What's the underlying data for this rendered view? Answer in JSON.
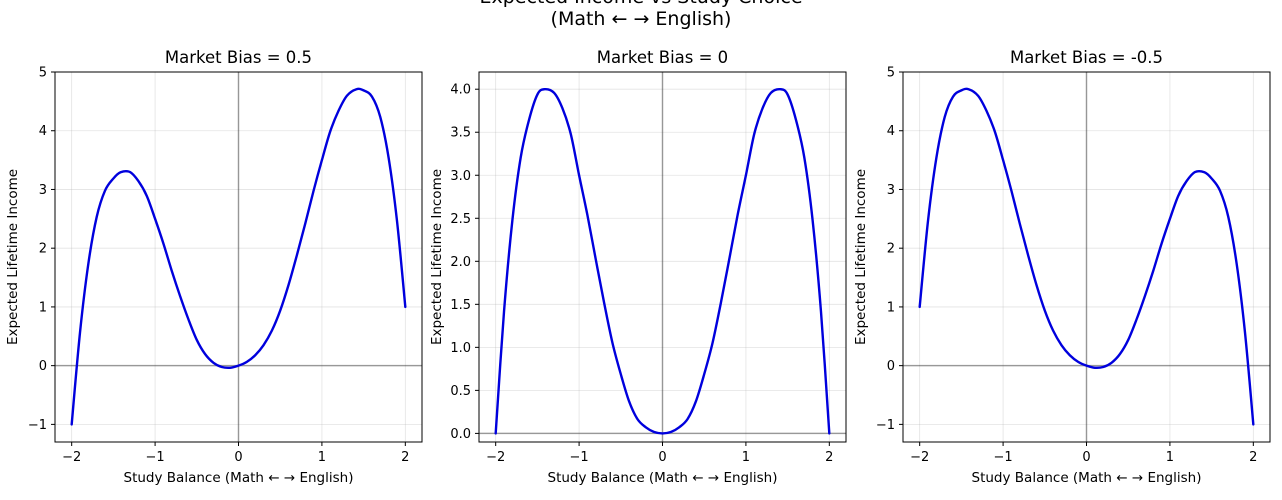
{
  "figure": {
    "suptitle_line1": "Expected Income vs Study Choice",
    "suptitle_line2": "(Math ← → English)"
  },
  "chart_data": [
    {
      "type": "line",
      "title": "Market Bias = 0.5",
      "xlabel": "Study Balance (Math ← → English)",
      "ylabel": "Expected Lifetime Income",
      "xlim": [
        -2.2,
        2.2
      ],
      "ylim": [
        -1.3,
        5.0
      ],
      "xticks": [
        -2,
        -1,
        0,
        1,
        2
      ],
      "xtick_labels": [
        "−2",
        "−1",
        "0",
        "1",
        "2"
      ],
      "yticks": [
        -1,
        0,
        1,
        2,
        3,
        4,
        5
      ],
      "ytick_labels": [
        "−1",
        "0",
        "1",
        "2",
        "3",
        "4",
        "5"
      ],
      "grid": true,
      "line_color": "#0000dd",
      "series": [
        {
          "x": [
            -2.0,
            -1.9,
            -1.8,
            -1.7,
            -1.6,
            -1.5,
            -1.414,
            -1.3,
            -1.2,
            -1.1,
            -1.0,
            -0.9,
            -0.8,
            -0.7,
            -0.6,
            -0.5,
            -0.4,
            -0.3,
            -0.2,
            -0.1,
            0.0,
            0.1,
            0.2,
            0.3,
            0.4,
            0.5,
            0.6,
            0.7,
            0.8,
            0.9,
            1.0,
            1.1,
            1.2,
            1.3,
            1.414,
            1.5,
            1.6,
            1.7,
            1.8,
            1.9,
            2.0
          ],
          "y": [
            -1.0,
            0.567,
            1.737,
            2.532,
            2.981,
            3.187,
            3.293,
            3.296,
            3.142,
            2.891,
            2.5,
            2.078,
            1.614,
            1.184,
            0.788,
            0.438,
            0.196,
            0.049,
            -0.023,
            -0.036,
            0.0,
            0.064,
            0.177,
            0.349,
            0.596,
            0.938,
            1.375,
            1.881,
            2.418,
            2.978,
            3.5,
            3.99,
            4.342,
            4.596,
            4.707,
            4.687,
            4.581,
            4.232,
            3.537,
            2.467,
            1.0
          ]
        }
      ]
    },
    {
      "type": "line",
      "title": "Market Bias = 0",
      "xlabel": "Study Balance (Math ← → English)",
      "ylabel": "Expected Lifetime Income",
      "xlim": [
        -2.2,
        2.2
      ],
      "ylim": [
        -0.1,
        4.2
      ],
      "xticks": [
        -2,
        -1,
        0,
        1,
        2
      ],
      "xtick_labels": [
        "−2",
        "−1",
        "0",
        "1",
        "2"
      ],
      "yticks": [
        0.0,
        0.5,
        1.0,
        1.5,
        2.0,
        2.5,
        3.0,
        3.5,
        4.0
      ],
      "ytick_labels": [
        "0.0",
        "0.5",
        "1.0",
        "1.5",
        "2.0",
        "2.5",
        "3.0",
        "3.5",
        "4.0"
      ],
      "grid": true,
      "line_color": "#0000dd",
      "series": [
        {
          "x": [
            -2.0,
            -1.9,
            -1.8,
            -1.7,
            -1.6,
            -1.5,
            -1.414,
            -1.3,
            -1.2,
            -1.1,
            -1.0,
            -0.9,
            -0.8,
            -0.7,
            -0.6,
            -0.5,
            -0.4,
            -0.3,
            -0.2,
            -0.1,
            0.0,
            0.1,
            0.2,
            0.3,
            0.4,
            0.5,
            0.6,
            0.7,
            0.8,
            0.9,
            1.0,
            1.1,
            1.2,
            1.3,
            1.414,
            1.5,
            1.6,
            1.7,
            1.8,
            1.9,
            2.0
          ],
          "y": [
            0.0,
            1.416,
            2.474,
            3.207,
            3.645,
            3.938,
            4.0,
            3.958,
            3.779,
            3.48,
            3.0,
            2.536,
            2.022,
            1.518,
            1.052,
            0.688,
            0.371,
            0.166,
            0.071,
            0.016,
            0.0,
            0.016,
            0.071,
            0.166,
            0.371,
            0.688,
            1.052,
            1.518,
            2.022,
            2.536,
            3.0,
            3.48,
            3.779,
            3.958,
            4.0,
            3.938,
            3.645,
            3.207,
            2.474,
            1.416,
            0.0
          ]
        }
      ]
    },
    {
      "type": "line",
      "title": "Market Bias = -0.5",
      "xlabel": "Study Balance (Math ← → English)",
      "ylabel": "Expected Lifetime Income",
      "xlim": [
        -2.2,
        2.2
      ],
      "ylim": [
        -1.3,
        5.0
      ],
      "xticks": [
        -2,
        -1,
        0,
        1,
        2
      ],
      "xtick_labels": [
        "−2",
        "−1",
        "0",
        "1",
        "2"
      ],
      "yticks": [
        -1,
        0,
        1,
        2,
        3,
        4,
        5
      ],
      "ytick_labels": [
        "−1",
        "0",
        "1",
        "2",
        "3",
        "4",
        "5"
      ],
      "grid": true,
      "line_color": "#0000dd",
      "series": [
        {
          "x": [
            -2.0,
            -1.9,
            -1.8,
            -1.7,
            -1.6,
            -1.5,
            -1.414,
            -1.3,
            -1.2,
            -1.1,
            -1.0,
            -0.9,
            -0.8,
            -0.7,
            -0.6,
            -0.5,
            -0.4,
            -0.3,
            -0.2,
            -0.1,
            0.0,
            0.1,
            0.2,
            0.3,
            0.4,
            0.5,
            0.6,
            0.7,
            0.8,
            0.9,
            1.0,
            1.1,
            1.2,
            1.3,
            1.414,
            1.5,
            1.6,
            1.7,
            1.8,
            1.9,
            2.0
          ],
          "y": [
            1.0,
            2.467,
            3.537,
            4.232,
            4.581,
            4.687,
            4.707,
            4.596,
            4.342,
            3.99,
            3.5,
            2.978,
            2.418,
            1.881,
            1.375,
            0.938,
            0.596,
            0.349,
            0.177,
            0.064,
            0.0,
            -0.036,
            -0.023,
            0.049,
            0.196,
            0.438,
            0.788,
            1.184,
            1.614,
            2.078,
            2.5,
            2.891,
            3.142,
            3.296,
            3.293,
            3.187,
            2.981,
            2.532,
            1.737,
            0.567,
            -1.0
          ]
        }
      ]
    }
  ]
}
